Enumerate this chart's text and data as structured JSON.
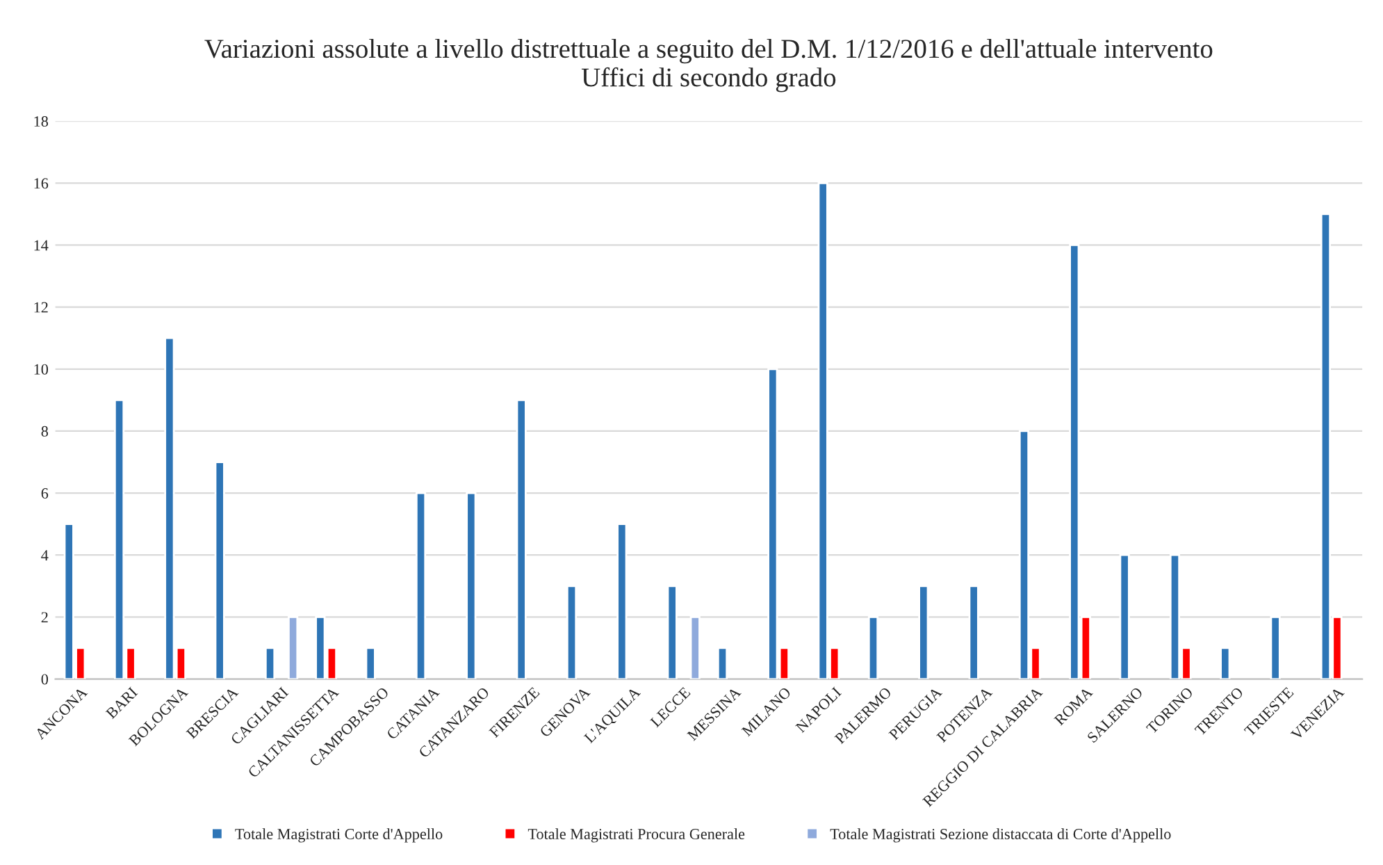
{
  "chart_data": {
    "type": "bar",
    "title": "Variazioni assolute a livello distrettuale a seguito del D.M. 1/12/2016 e dell'attuale intervento\nUffici di secondo grado",
    "categories": [
      "ANCONA",
      "BARI",
      "BOLOGNA",
      "BRESCIA",
      "CAGLIARI",
      "CALTANISSETTA",
      "CAMPOBASSO",
      "CATANIA",
      "CATANZARO",
      "FIRENZE",
      "GENOVA",
      "L'AQUILA",
      "LECCE",
      "MESSINA",
      "MILANO",
      "NAPOLI",
      "PALERMO",
      "PERUGIA",
      "POTENZA",
      "REGGIO DI CALABRIA",
      "ROMA",
      "SALERNO",
      "TORINO",
      "TRENTO",
      "TRIESTE",
      "VENEZIA"
    ],
    "series": [
      {
        "name": "Totale Magistrati Corte d'Appello",
        "color": "#2e75b6",
        "values": [
          5,
          9,
          11,
          7,
          1,
          2,
          1,
          6,
          6,
          9,
          3,
          5,
          3,
          1,
          10,
          16,
          2,
          3,
          3,
          8,
          14,
          4,
          4,
          1,
          2,
          15
        ]
      },
      {
        "name": "Totale Magistrati Procura Generale",
        "color": "#ff0000",
        "values": [
          1,
          1,
          1,
          null,
          null,
          1,
          null,
          null,
          null,
          null,
          null,
          null,
          null,
          null,
          1,
          1,
          null,
          null,
          null,
          1,
          2,
          null,
          1,
          null,
          null,
          2
        ]
      },
      {
        "name": "Totale Magistrati Sezione distaccata di Corte d'Appello",
        "color": "#8faadc",
        "values": [
          null,
          null,
          null,
          null,
          2,
          null,
          null,
          null,
          null,
          null,
          null,
          null,
          2,
          null,
          null,
          null,
          null,
          null,
          null,
          null,
          null,
          null,
          null,
          null,
          null,
          null
        ]
      }
    ],
    "ylim": [
      0,
      18
    ],
    "yticks": [
      0,
      2,
      4,
      6,
      8,
      10,
      12,
      14,
      16,
      18
    ],
    "grid": "y",
    "legend": "bottom"
  }
}
